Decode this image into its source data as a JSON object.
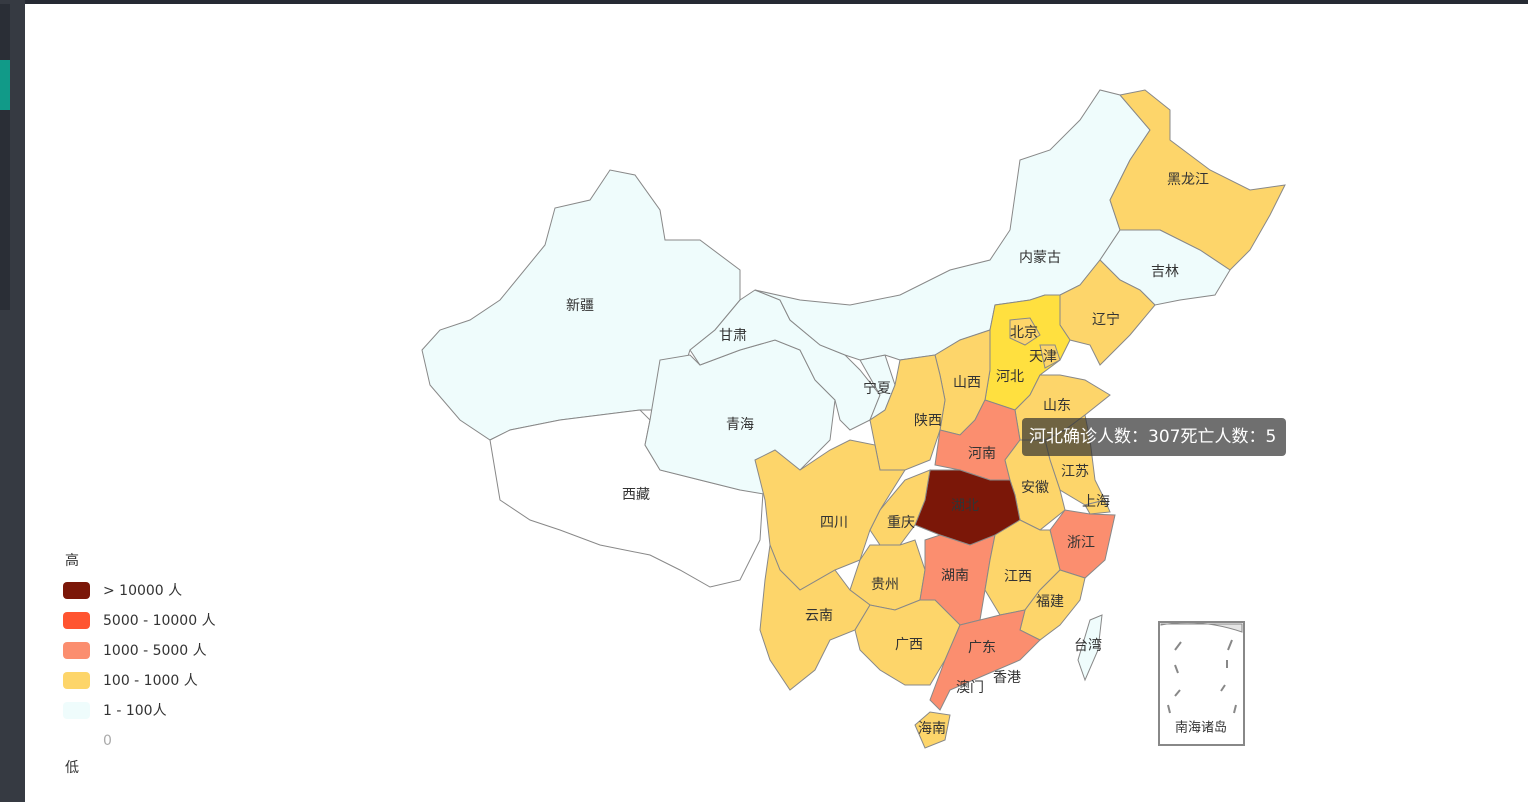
{
  "map": {
    "regions": [
      {
        "name": "新疆",
        "color": "#effcfc"
      },
      {
        "name": "西藏",
        "color": "#ffffff"
      },
      {
        "name": "青海",
        "color": "#effcfc"
      },
      {
        "name": "甘肃",
        "color": "#effcfc"
      },
      {
        "name": "宁夏",
        "color": "#effcfc"
      },
      {
        "name": "内蒙古",
        "color": "#effcfc"
      },
      {
        "name": "黑龙江",
        "color": "#fdd56a"
      },
      {
        "name": "吉林",
        "color": "#effcfc"
      },
      {
        "name": "辽宁",
        "color": "#fdd56a"
      },
      {
        "name": "河北",
        "color": "#ffe03f"
      },
      {
        "name": "北京",
        "color": "#fdd56a"
      },
      {
        "name": "天津",
        "color": "#fdd56a"
      },
      {
        "name": "山西",
        "color": "#fdd56a"
      },
      {
        "name": "陕西",
        "color": "#fdd56a"
      },
      {
        "name": "山东",
        "color": "#fdd56a"
      },
      {
        "name": "河南",
        "color": "#fb8e6f"
      },
      {
        "name": "江苏",
        "color": "#fdd56a"
      },
      {
        "name": "上海",
        "color": "#fdd56a"
      },
      {
        "name": "安徽",
        "color": "#fdd56a"
      },
      {
        "name": "浙江",
        "color": "#fb8e6f"
      },
      {
        "name": "湖北",
        "color": "#7b1708"
      },
      {
        "name": "重庆",
        "color": "#fdd56a"
      },
      {
        "name": "四川",
        "color": "#fdd56a"
      },
      {
        "name": "贵州",
        "color": "#fdd56a"
      },
      {
        "name": "云南",
        "color": "#fdd56a"
      },
      {
        "name": "湖南",
        "color": "#fb8e6f"
      },
      {
        "name": "江西",
        "color": "#fdd56a"
      },
      {
        "name": "福建",
        "color": "#fdd56a"
      },
      {
        "name": "广西",
        "color": "#fdd56a"
      },
      {
        "name": "广东",
        "color": "#fb8e6f"
      },
      {
        "name": "海南",
        "color": "#fdd56a"
      },
      {
        "name": "台湾",
        "color": "#effcfc"
      }
    ],
    "city_labels": [
      "香港",
      "澳门"
    ],
    "south_sea_label": "南海诸岛",
    "tooltip": {
      "region": "河北",
      "confirmed_label": "确诊人数：",
      "confirmed": 307,
      "deaths_label": "死亡人数：",
      "deaths": 5
    },
    "legend": {
      "high": "高",
      "low": "低",
      "items": [
        {
          "label": "> 10000 人",
          "color": "#7b1708"
        },
        {
          "label": "5000 - 10000 人",
          "color": "#ff5430"
        },
        {
          "label": "1000 - 5000 人",
          "color": "#fb8e6f"
        },
        {
          "label": "100 - 1000 人",
          "color": "#fdd56a"
        },
        {
          "label": "1 - 100人",
          "color": "#effcfc"
        },
        {
          "label": "0",
          "color": "#ffffff"
        }
      ]
    }
  }
}
